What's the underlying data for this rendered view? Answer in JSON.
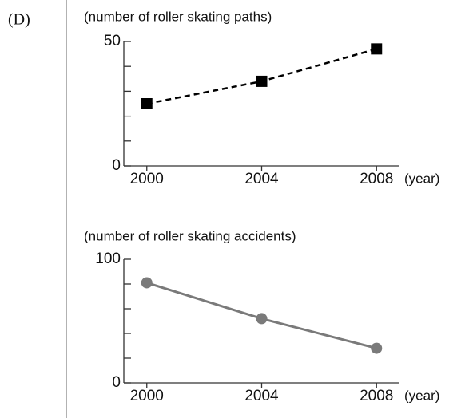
{
  "label": "(D)",
  "chart_data": [
    {
      "type": "line",
      "title": "(number of roller skating paths)",
      "x_label": "(year)",
      "x": [
        2000,
        2004,
        2008
      ],
      "xlim": [
        1999.2,
        2008.8
      ],
      "xticks": [
        2000,
        2004,
        2008
      ],
      "ylim": [
        0,
        50
      ],
      "yticks": [
        0,
        50
      ],
      "yminor_ticks": [
        10,
        20,
        30,
        40
      ],
      "series": [
        {
          "name": "roller skating paths",
          "color": "#000000",
          "dashed": true,
          "marker": "square",
          "values": [
            25,
            34,
            47
          ]
        }
      ]
    },
    {
      "type": "line",
      "title": "(number of roller skating accidents)",
      "x_label": "(year)",
      "x": [
        2000,
        2004,
        2008
      ],
      "xlim": [
        1999.2,
        2008.8
      ],
      "xticks": [
        2000,
        2004,
        2008
      ],
      "ylim": [
        0,
        100
      ],
      "yticks": [
        0,
        100
      ],
      "yminor_ticks": [
        20,
        40,
        60,
        80
      ],
      "series": [
        {
          "name": "roller skating accidents",
          "color": "#7a7a7a",
          "dashed": false,
          "marker": "circle",
          "values": [
            81,
            52,
            28
          ]
        }
      ]
    }
  ]
}
